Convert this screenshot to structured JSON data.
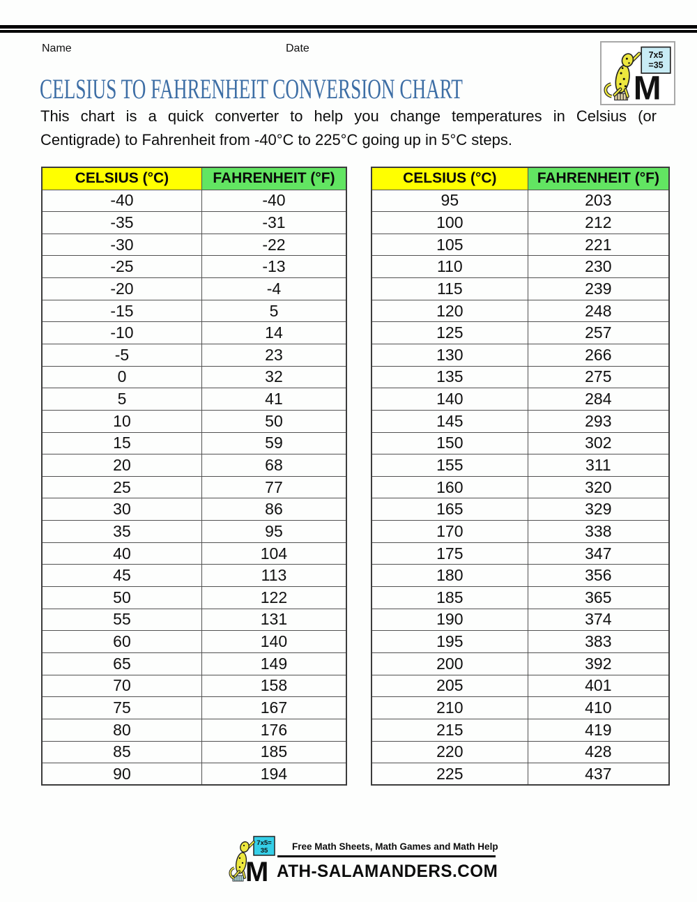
{
  "page": {
    "name_label": "Name",
    "date_label": "Date"
  },
  "title": "CELSIUS TO FAHRENHEIT CONVERSION CHART",
  "description": {
    "line1": "This chart is a quick converter to help you change temperatures in Celsius (or",
    "line2": "Centigrade) to Fahrenheit from -40°C to 225°C going up in 5°C steps."
  },
  "logo": {
    "board_line1": "7x5",
    "board_line2": "=35",
    "letter_m": "M"
  },
  "tables": {
    "left": {
      "col1": "CELSIUS (°C)",
      "col2": "FAHRENHEIT (°F)",
      "rows": [
        [
          "-40",
          "-40"
        ],
        [
          "-35",
          "-31"
        ],
        [
          "-30",
          "-22"
        ],
        [
          "-25",
          "-13"
        ],
        [
          "-20",
          "-4"
        ],
        [
          "-15",
          "5"
        ],
        [
          "-10",
          "14"
        ],
        [
          "-5",
          "23"
        ],
        [
          "0",
          "32"
        ],
        [
          "5",
          "41"
        ],
        [
          "10",
          "50"
        ],
        [
          "15",
          "59"
        ],
        [
          "20",
          "68"
        ],
        [
          "25",
          "77"
        ],
        [
          "30",
          "86"
        ],
        [
          "35",
          "95"
        ],
        [
          "40",
          "104"
        ],
        [
          "45",
          "113"
        ],
        [
          "50",
          "122"
        ],
        [
          "55",
          "131"
        ],
        [
          "60",
          "140"
        ],
        [
          "65",
          "149"
        ],
        [
          "70",
          "158"
        ],
        [
          "75",
          "167"
        ],
        [
          "80",
          "176"
        ],
        [
          "85",
          "185"
        ],
        [
          "90",
          "194"
        ]
      ]
    },
    "right": {
      "col1": "CELSIUS (°C)",
      "col2": "FAHRENHEIT (°F)",
      "rows": [
        [
          "95",
          "203"
        ],
        [
          "100",
          "212"
        ],
        [
          "105",
          "221"
        ],
        [
          "110",
          "230"
        ],
        [
          "115",
          "239"
        ],
        [
          "120",
          "248"
        ],
        [
          "125",
          "257"
        ],
        [
          "130",
          "266"
        ],
        [
          "135",
          "275"
        ],
        [
          "140",
          "284"
        ],
        [
          "145",
          "293"
        ],
        [
          "150",
          "302"
        ],
        [
          "155",
          "311"
        ],
        [
          "160",
          "320"
        ],
        [
          "165",
          "329"
        ],
        [
          "170",
          "338"
        ],
        [
          "175",
          "347"
        ],
        [
          "180",
          "356"
        ],
        [
          "185",
          "365"
        ],
        [
          "190",
          "374"
        ],
        [
          "195",
          "383"
        ],
        [
          "200",
          "392"
        ],
        [
          "205",
          "401"
        ],
        [
          "210",
          "410"
        ],
        [
          "215",
          "419"
        ],
        [
          "220",
          "428"
        ],
        [
          "225",
          "437"
        ]
      ]
    }
  },
  "footer": {
    "tagline": "Free Math Sheets, Math Games and Math Help",
    "wordmark_m": "M",
    "wordmark_rest": "ATH-SALAMANDERS.COM",
    "board_line1": "7x5=",
    "board_line2": "35"
  },
  "colors": {
    "header_yellow": "#ffff00",
    "header_green": "#62e562",
    "title_blue": "#3d6ea5"
  }
}
